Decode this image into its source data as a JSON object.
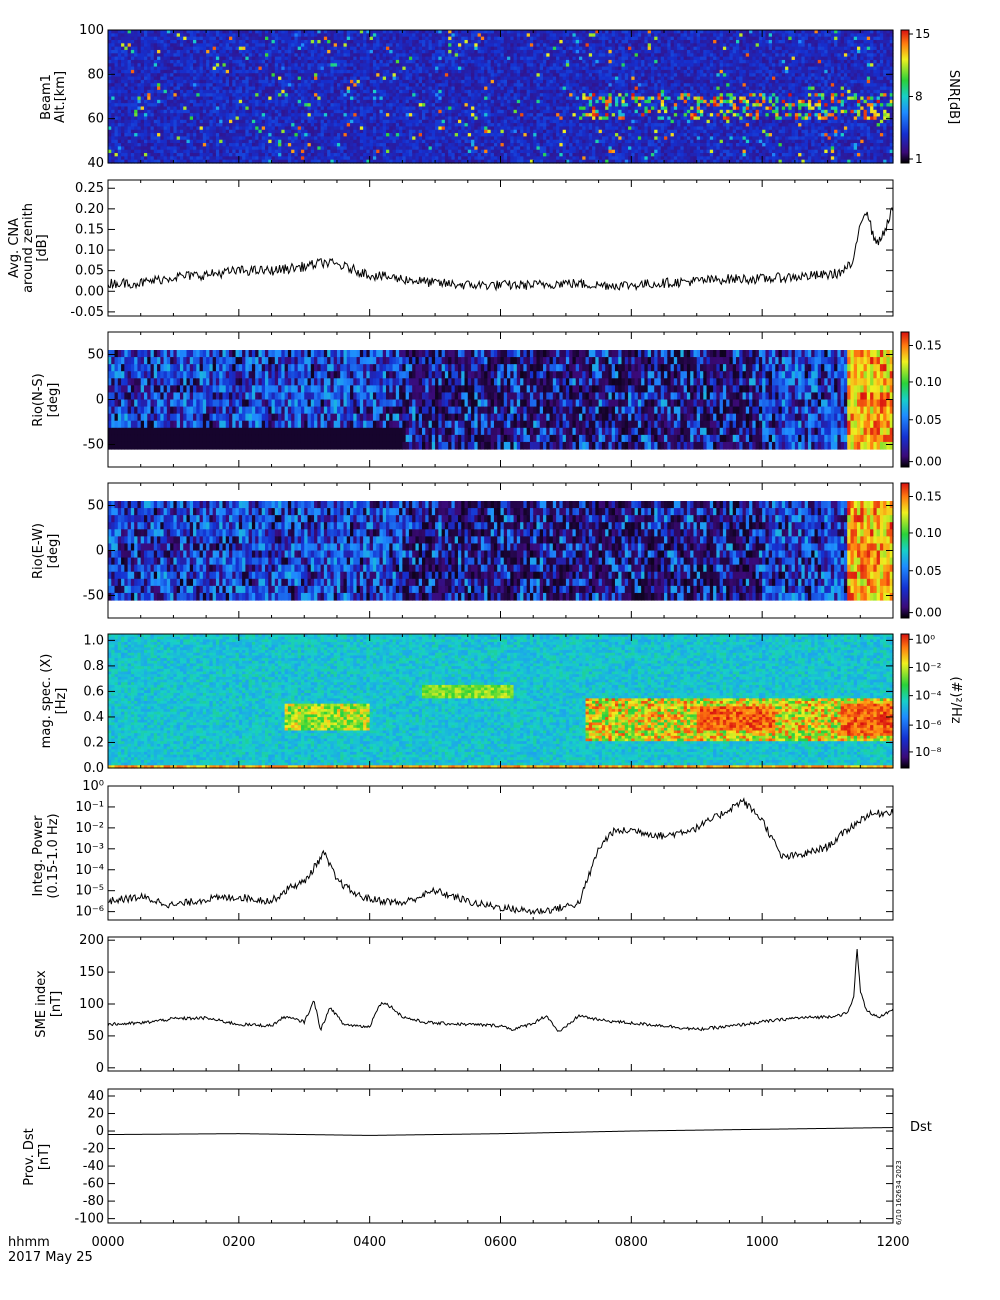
{
  "chart_data": [
    {
      "id": "beam1",
      "type": "heatmap",
      "ylabel_lines": [
        "Beam1",
        "Alt.[km]"
      ],
      "ylim": [
        40,
        100
      ],
      "yticks": [
        {
          "v": 40,
          "l": "40"
        },
        {
          "v": 60,
          "l": "60"
        },
        {
          "v": 80,
          "l": "80"
        },
        {
          "v": 100,
          "l": "100"
        }
      ],
      "colorbar": {
        "label": "SNR[dB]",
        "ticks": [
          "1",
          "8",
          "15"
        ],
        "range": [
          1,
          15
        ]
      }
    },
    {
      "id": "cna",
      "type": "line",
      "ylabel_lines": [
        "Avg. CNA",
        "around zenith",
        "[dB]"
      ],
      "ylim": [
        -0.06,
        0.27
      ],
      "yticks": [
        {
          "v": -0.05,
          "l": "-0.05"
        },
        {
          "v": 0,
          "l": "0.00"
        },
        {
          "v": 0.05,
          "l": "0.05"
        },
        {
          "v": 0.1,
          "l": "0.10"
        },
        {
          "v": 0.15,
          "l": "0.15"
        },
        {
          "v": 0.2,
          "l": "0.20"
        },
        {
          "v": 0.25,
          "l": "0.25"
        }
      ],
      "x_hours": [
        0,
        0.5,
        1,
        1.5,
        2,
        2.5,
        3,
        3.3,
        3.5,
        4,
        4.5,
        5,
        5.5,
        6,
        6.5,
        7,
        7.5,
        8,
        8.5,
        9,
        9.5,
        10,
        10.5,
        11,
        11.2,
        11.4,
        11.5,
        11.6,
        11.7,
        11.8,
        12
      ],
      "y": [
        0.02,
        0.02,
        0.035,
        0.04,
        0.05,
        0.05,
        0.06,
        0.07,
        0.065,
        0.04,
        0.03,
        0.02,
        0.015,
        0.015,
        0.015,
        0.02,
        0.015,
        0.015,
        0.02,
        0.025,
        0.03,
        0.03,
        0.035,
        0.04,
        0.045,
        0.07,
        0.17,
        0.2,
        0.13,
        0.12,
        0.2
      ]
    },
    {
      "id": "rio_ns",
      "type": "heatmap",
      "ylabel_lines": [
        "Rio(N-S)",
        "[deg]"
      ],
      "ylim": [
        -75,
        75
      ],
      "yticks": [
        {
          "v": -50,
          "l": "-50"
        },
        {
          "v": 0,
          "l": "0"
        },
        {
          "v": 50,
          "l": "50"
        }
      ],
      "colorbar": {
        "ticks": [
          "0.00",
          "0.05",
          "0.10",
          "0.15"
        ],
        "range": [
          0,
          0.17
        ]
      }
    },
    {
      "id": "rio_ew",
      "type": "heatmap",
      "ylabel_lines": [
        "Rio(E-W)",
        "[deg]"
      ],
      "ylim": [
        -75,
        75
      ],
      "yticks": [
        {
          "v": -50,
          "l": "-50"
        },
        {
          "v": 0,
          "l": "0"
        },
        {
          "v": 50,
          "l": "50"
        }
      ],
      "colorbar": {
        "ticks": [
          "0.00",
          "0.05",
          "0.10",
          "0.15"
        ],
        "range": [
          0,
          0.17
        ]
      }
    },
    {
      "id": "magspec",
      "type": "heatmap",
      "ylabel_lines": [
        "mag. spec. (X)",
        "[Hz]"
      ],
      "ylim": [
        0,
        1.05
      ],
      "yticks": [
        {
          "v": 0,
          "l": "0.0"
        },
        {
          "v": 0.2,
          "l": "0.2"
        },
        {
          "v": 0.4,
          "l": "0.4"
        },
        {
          "v": 0.6,
          "l": "0.6"
        },
        {
          "v": 0.8,
          "l": "0.8"
        },
        {
          "v": 1.0,
          "l": "1.0"
        }
      ],
      "colorbar": {
        "label": "(#)²/Hz",
        "ticks": [
          "10⁻⁸",
          "10⁻⁶",
          "10⁻⁴",
          "10⁻²",
          "10⁰"
        ],
        "range": [
          1e-09,
          1
        ]
      }
    },
    {
      "id": "integ",
      "type": "line",
      "ylabel_lines": [
        "Integ. Power",
        "(0.15-1.0 Hz)"
      ],
      "log_y": true,
      "ylim_log10": [
        -6.4,
        0
      ],
      "yticks": [
        {
          "v": -6,
          "l": "10⁻⁶"
        },
        {
          "v": -5,
          "l": "10⁻⁵"
        },
        {
          "v": -4,
          "l": "10⁻⁴"
        },
        {
          "v": -3,
          "l": "10⁻³"
        },
        {
          "v": -2,
          "l": "10⁻²"
        },
        {
          "v": -1,
          "l": "10⁻¹"
        },
        {
          "v": 0,
          "l": "10⁰"
        }
      ],
      "x_hours": [
        0,
        0.5,
        1,
        1.5,
        2,
        2.5,
        2.8,
        3,
        3.3,
        3.5,
        3.8,
        4,
        4.5,
        5,
        5.3,
        5.6,
        6,
        6.5,
        6.8,
        7.2,
        7.5,
        7.7,
        8,
        8.5,
        9,
        9.4,
        9.7,
        10,
        10.3,
        10.6,
        11,
        11.3,
        11.6,
        12
      ],
      "y_log10": [
        -5.5,
        -5.3,
        -5.7,
        -5.4,
        -5.3,
        -5.5,
        -4.8,
        -4.6,
        -3.2,
        -4.5,
        -5.2,
        -5.4,
        -5.6,
        -5.0,
        -5.3,
        -5.6,
        -5.8,
        -6.0,
        -5.9,
        -5.6,
        -3.0,
        -2.2,
        -2.1,
        -2.4,
        -2.0,
        -1.3,
        -0.7,
        -1.6,
        -3.4,
        -3.3,
        -2.9,
        -2.1,
        -1.4,
        -1.2
      ]
    },
    {
      "id": "sme",
      "type": "line",
      "ylabel_lines": [
        "SME index",
        "[nT]"
      ],
      "ylim": [
        -5,
        205
      ],
      "yticks": [
        {
          "v": 0,
          "l": "0"
        },
        {
          "v": 50,
          "l": "50"
        },
        {
          "v": 100,
          "l": "100"
        },
        {
          "v": 150,
          "l": "150"
        },
        {
          "v": 200,
          "l": "200"
        }
      ],
      "x_hours": [
        0,
        0.5,
        1,
        1.5,
        2,
        2.5,
        2.7,
        3,
        3.15,
        3.25,
        3.4,
        3.6,
        4,
        4.1,
        4.2,
        4.35,
        4.5,
        4.8,
        5,
        5.5,
        6,
        6.2,
        6.5,
        6.7,
        6.9,
        7.2,
        7.5,
        8,
        8.5,
        9,
        9.5,
        10,
        10.5,
        11,
        11.3,
        11.4,
        11.45,
        11.5,
        11.6,
        11.8,
        12
      ],
      "y": [
        68,
        70,
        77,
        78,
        68,
        66,
        80,
        72,
        105,
        60,
        95,
        68,
        64,
        90,
        103,
        94,
        80,
        72,
        70,
        68,
        66,
        60,
        70,
        82,
        55,
        82,
        75,
        70,
        66,
        60,
        65,
        72,
        78,
        80,
        85,
        110,
        190,
        120,
        88,
        80,
        90
      ]
    },
    {
      "id": "dst",
      "type": "line",
      "ylabel_lines": [
        "Prov. Dst",
        "[nT]"
      ],
      "ylim": [
        -105,
        48
      ],
      "yticks": [
        {
          "v": -100,
          "l": "-100"
        },
        {
          "v": -80,
          "l": "-80"
        },
        {
          "v": -60,
          "l": "-60"
        },
        {
          "v": -40,
          "l": "-40"
        },
        {
          "v": -20,
          "l": "-20"
        },
        {
          "v": 0,
          "l": "0"
        },
        {
          "v": 20,
          "l": "20"
        },
        {
          "v": 40,
          "l": "40"
        }
      ],
      "x_hours": [
        0,
        2,
        4,
        6,
        8,
        10,
        12
      ],
      "y": [
        -4,
        -3,
        -5,
        -3,
        0,
        2,
        4
      ],
      "side_label": "Dst"
    }
  ],
  "time_axis": {
    "xlim_hours": [
      0,
      12
    ],
    "tick_labels": [
      "0000",
      "0200",
      "0400",
      "0600",
      "0800",
      "1000",
      "1200"
    ],
    "unit_label": "hhmm",
    "date_label": "2017 May 25"
  },
  "stamp": "6/10 162634 2023",
  "colors": {
    "line": "#000000",
    "axes": "#000000",
    "background": "#ffffff"
  }
}
